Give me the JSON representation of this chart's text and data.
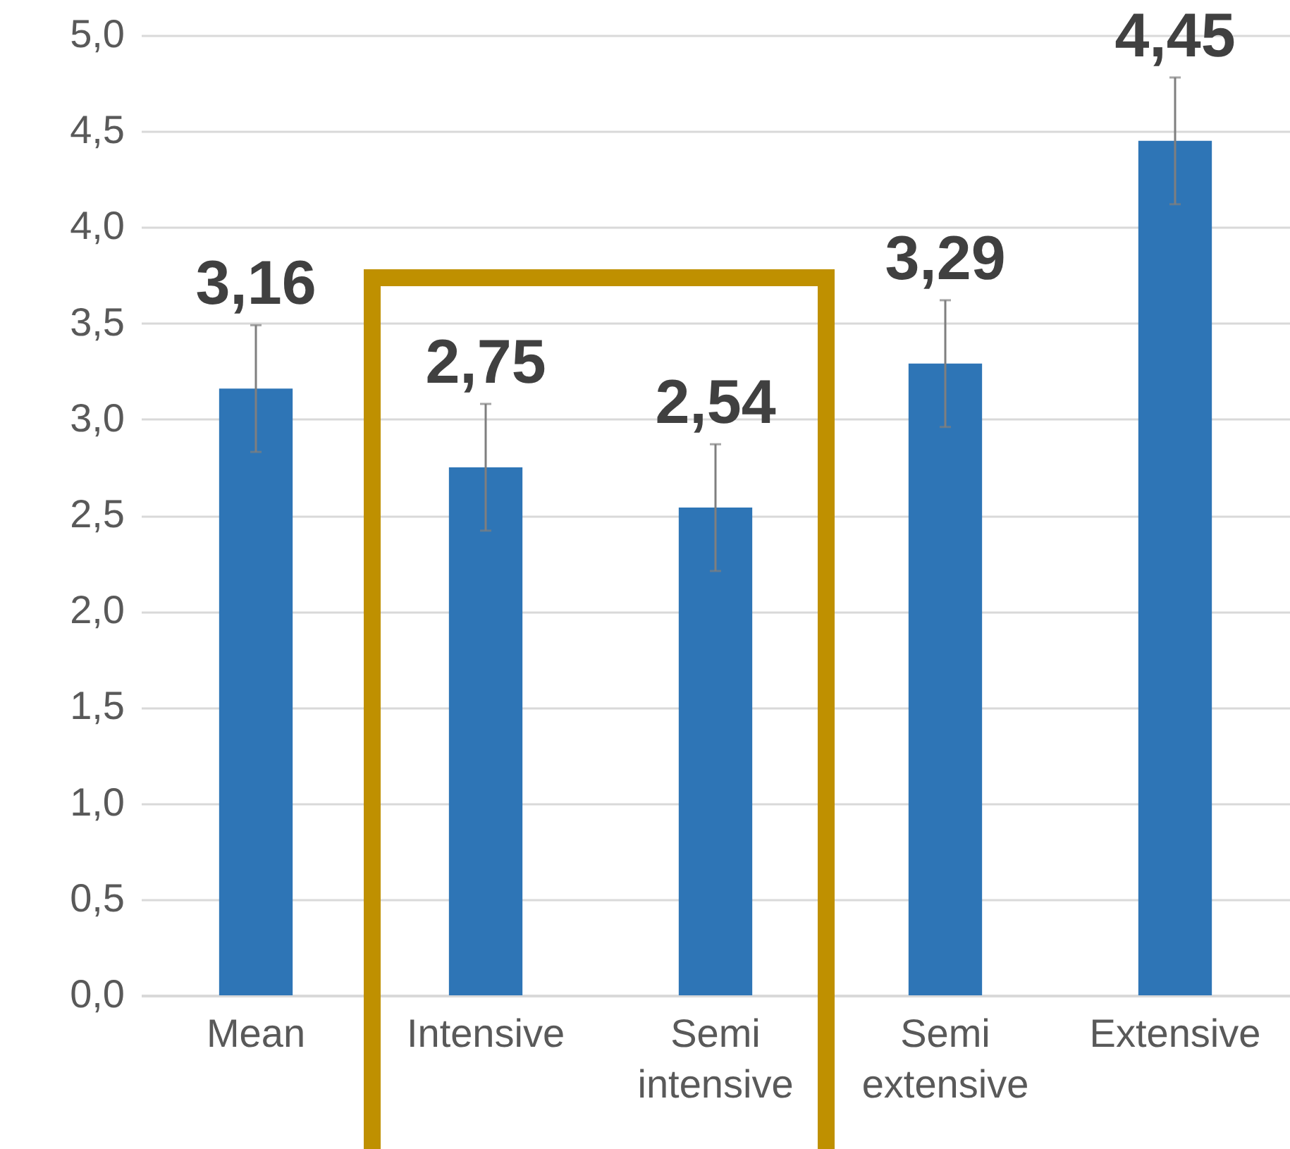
{
  "chart_data": {
    "type": "bar",
    "categories": [
      "Mean",
      "Intensive",
      "Semi intensive",
      "Semi extensive",
      "Extensive"
    ],
    "values": [
      3.16,
      2.75,
      2.54,
      3.29,
      4.45
    ],
    "errors": [
      0.33,
      0.33,
      0.33,
      0.33,
      0.33
    ],
    "value_labels": [
      "3,16",
      "2,75",
      "2,54",
      "3,29",
      "4,45"
    ],
    "color": "#2e75b6",
    "ylim": [
      0,
      5
    ],
    "yticks": [
      {
        "value": 0,
        "label": "0,0"
      },
      {
        "value": 0.5,
        "label": "0,5"
      },
      {
        "value": 1,
        "label": "1,0"
      },
      {
        "value": 1.5,
        "label": "1,5"
      },
      {
        "value": 2,
        "label": "2,0"
      },
      {
        "value": 2.5,
        "label": "2,5"
      },
      {
        "value": 3,
        "label": "3,0"
      },
      {
        "value": 3.5,
        "label": "3,5"
      },
      {
        "value": 4,
        "label": "4,0"
      },
      {
        "value": 4.5,
        "label": "4,5"
      },
      {
        "value": 5,
        "label": "5,0"
      }
    ],
    "grid": "y"
  }
}
